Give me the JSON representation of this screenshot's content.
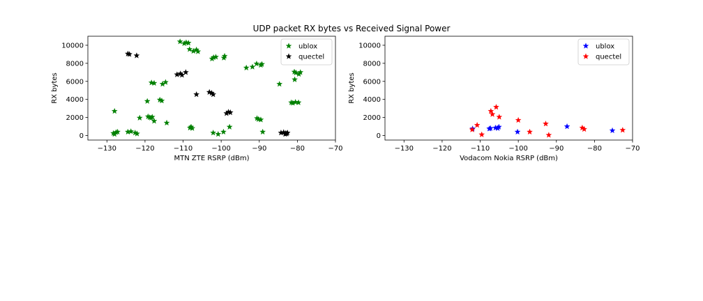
{
  "figure_title": "UDP packet RX bytes vs Received Signal Power",
  "chart_data": [
    {
      "type": "scatter",
      "xlabel": "MTN ZTE RSRP (dBm)",
      "ylabel": "RX bytes",
      "xlim": [
        -135,
        -70
      ],
      "ylim": [
        -500,
        11000
      ],
      "xticks": [
        -130,
        -120,
        -110,
        -100,
        -90,
        -80,
        -70
      ],
      "yticks": [
        0,
        2000,
        4000,
        6000,
        8000,
        10000
      ],
      "xtick_labels": [
        "−130",
        "−120",
        "−110",
        "−100",
        "−90",
        "−80",
        "−70"
      ],
      "ytick_labels": [
        "0",
        "2000",
        "4000",
        "6000",
        "8000",
        "10000"
      ],
      "legend": "top-right",
      "grid": false,
      "series": [
        {
          "name": "ublox",
          "color": "#008000",
          "marker": "star",
          "points": [
            [
              -128,
              2700
            ],
            [
              -128.3,
              250
            ],
            [
              -128,
              150
            ],
            [
              -127.6,
              350
            ],
            [
              -127.2,
              400
            ],
            [
              -124.5,
              400
            ],
            [
              -123.7,
              450
            ],
            [
              -122.6,
              300
            ],
            [
              -122.1,
              200
            ],
            [
              -121.4,
              1950
            ],
            [
              -119.4,
              3800
            ],
            [
              -119.2,
              2100
            ],
            [
              -118.8,
              2000
            ],
            [
              -118.4,
              1950
            ],
            [
              -118.1,
              2050
            ],
            [
              -117.6,
              1600
            ],
            [
              -118.3,
              5850
            ],
            [
              -117.6,
              5800
            ],
            [
              -116.1,
              3950
            ],
            [
              -115.6,
              3850
            ],
            [
              -115.4,
              5700
            ],
            [
              -114.6,
              5900
            ],
            [
              -114.3,
              1400
            ],
            [
              -110.8,
              10400
            ],
            [
              -109.7,
              10200
            ],
            [
              -109.2,
              10300
            ],
            [
              -108.6,
              10250
            ],
            [
              -108.3,
              9550
            ],
            [
              -107.3,
              9350
            ],
            [
              -106.5,
              9500
            ],
            [
              -106.1,
              9300
            ],
            [
              -108.2,
              850
            ],
            [
              -107.9,
              950
            ],
            [
              -107.6,
              800
            ],
            [
              -102.4,
              8500
            ],
            [
              -102,
              8650
            ],
            [
              -101.4,
              8700
            ],
            [
              -99.3,
              8600
            ],
            [
              -99.1,
              8800
            ],
            [
              -102.1,
              300
            ],
            [
              -100.8,
              150
            ],
            [
              -99.4,
              400
            ],
            [
              -97.8,
              950
            ],
            [
              -93.4,
              7500
            ],
            [
              -91.8,
              7600
            ],
            [
              -90.7,
              7950
            ],
            [
              -89.6,
              7800
            ],
            [
              -89.3,
              7900
            ],
            [
              -90.6,
              1900
            ],
            [
              -90.2,
              1800
            ],
            [
              -89.6,
              1750
            ],
            [
              -89.1,
              400
            ],
            [
              -84.7,
              5700
            ],
            [
              -81.6,
              3650
            ],
            [
              -81.2,
              3600
            ],
            [
              -80.7,
              6200
            ],
            [
              -80.8,
              7050
            ],
            [
              -80.4,
              6950
            ],
            [
              -79.6,
              6800
            ],
            [
              -79.2,
              7000
            ],
            [
              -80.5,
              3700
            ],
            [
              -79.7,
              3650
            ]
          ]
        },
        {
          "name": "quectel",
          "color": "#000000",
          "marker": "star",
          "points": [
            [
              -124.5,
              9050
            ],
            [
              -124.1,
              9000
            ],
            [
              -122.2,
              8850
            ],
            [
              -111.6,
              6750
            ],
            [
              -110.7,
              6850
            ],
            [
              -110.3,
              6700
            ],
            [
              -109.3,
              7000
            ],
            [
              -106.5,
              4550
            ],
            [
              -103.1,
              4800
            ],
            [
              -102.5,
              4700
            ],
            [
              -102.1,
              4550
            ],
            [
              -98.6,
              2450
            ],
            [
              -98.1,
              2600
            ],
            [
              -97.6,
              2550
            ],
            [
              -84.3,
              300
            ],
            [
              -83.6,
              350
            ],
            [
              -83.1,
              250
            ],
            [
              -82.8,
              200
            ],
            [
              -83.2,
              150
            ],
            [
              -82.6,
              300
            ]
          ]
        }
      ]
    },
    {
      "type": "scatter",
      "xlabel": "Vodacom Nokia RSRP (dBm)",
      "ylabel": "RX bytes",
      "xlim": [
        -135,
        -70
      ],
      "ylim": [
        -500,
        11000
      ],
      "xticks": [
        -130,
        -120,
        -110,
        -100,
        -90,
        -80,
        -70
      ],
      "yticks": [
        0,
        2000,
        4000,
        6000,
        8000,
        10000
      ],
      "xtick_labels": [
        "−130",
        "−120",
        "−110",
        "−100",
        "−90",
        "−80",
        "−70"
      ],
      "ytick_labels": [
        "0",
        "2000",
        "4000",
        "6000",
        "8000",
        "10000"
      ],
      "legend": "top-right",
      "grid": false,
      "series": [
        {
          "name": "ublox",
          "color": "#0000ff",
          "marker": "star",
          "points": [
            [
              -112,
              750
            ],
            [
              -107.6,
              750
            ],
            [
              -107.3,
              800
            ],
            [
              -106,
              850
            ],
            [
              -105.4,
              800
            ],
            [
              -105.1,
              950
            ],
            [
              -100.2,
              400
            ],
            [
              -87.2,
              1000
            ],
            [
              -75.3,
              550
            ]
          ]
        },
        {
          "name": "quectel",
          "color": "#ff0000",
          "marker": "star",
          "points": [
            [
              -112.1,
              650
            ],
            [
              -110.8,
              1150
            ],
            [
              -109.6,
              100
            ],
            [
              -107.2,
              2700
            ],
            [
              -106.8,
              2350
            ],
            [
              -105.8,
              3150
            ],
            [
              -105,
              2050
            ],
            [
              -100,
              1700
            ],
            [
              -97,
              400
            ],
            [
              -92.8,
              1300
            ],
            [
              -92,
              50
            ],
            [
              -83.2,
              850
            ],
            [
              -82.7,
              700
            ],
            [
              -72.6,
              600
            ]
          ]
        }
      ]
    }
  ]
}
